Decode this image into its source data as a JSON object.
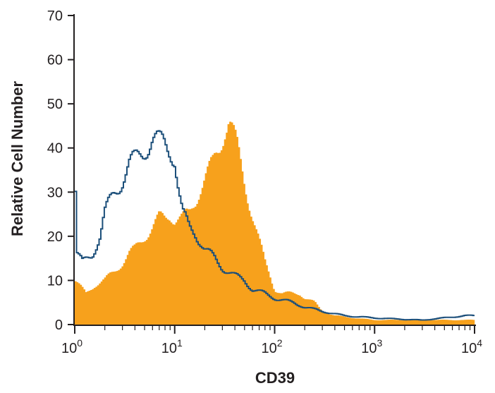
{
  "chart_data": {
    "type": "histogram",
    "xlabel": "CD39",
    "ylabel": "Relative Cell Number",
    "x_scale": "log",
    "xlim": [
      1,
      10000
    ],
    "ylim": [
      0,
      70
    ],
    "y_ticks": [
      0,
      10,
      20,
      30,
      40,
      50,
      60,
      70
    ],
    "x_ticks": [
      {
        "value": 1,
        "base": "10",
        "exp": "0"
      },
      {
        "value": 10,
        "base": "10",
        "exp": "1"
      },
      {
        "value": 100,
        "base": "10",
        "exp": "2"
      },
      {
        "value": 1000,
        "base": "10",
        "exp": "3"
      },
      {
        "value": 10000,
        "base": "10",
        "exp": "4"
      }
    ],
    "grid": false,
    "series": [
      {
        "style": "filled",
        "color": "#f7a11c",
        "points": [
          [
            1.0,
            10
          ],
          [
            1.3,
            7
          ],
          [
            1.6,
            9
          ],
          [
            2.0,
            10
          ],
          [
            2.5,
            12
          ],
          [
            3.0,
            14
          ],
          [
            3.5,
            16
          ],
          [
            4.0,
            17
          ],
          [
            5.0,
            20
          ],
          [
            6.0,
            22
          ],
          [
            7.0,
            24
          ],
          [
            8.0,
            24
          ],
          [
            9.0,
            25
          ],
          [
            10.0,
            24
          ],
          [
            12.0,
            24
          ],
          [
            14.0,
            25
          ],
          [
            16.0,
            28
          ],
          [
            18.0,
            31
          ],
          [
            20.0,
            33
          ],
          [
            24.0,
            36
          ],
          [
            28.0,
            40
          ],
          [
            32.0,
            45
          ],
          [
            35.0,
            47
          ],
          [
            38.0,
            44
          ],
          [
            42.0,
            40
          ],
          [
            50.0,
            32
          ],
          [
            60.0,
            25
          ],
          [
            70.0,
            19
          ],
          [
            80.0,
            14
          ],
          [
            90.0,
            11
          ],
          [
            100.0,
            8
          ],
          [
            120.0,
            7
          ],
          [
            150.0,
            7
          ],
          [
            180.0,
            7
          ],
          [
            200.0,
            6
          ],
          [
            250.0,
            5
          ],
          [
            300.0,
            3
          ],
          [
            400.0,
            2
          ],
          [
            600.0,
            1.5
          ],
          [
            1000.0,
            1
          ],
          [
            2000.0,
            1
          ],
          [
            5000.0,
            1
          ],
          [
            10000.0,
            1
          ]
        ]
      },
      {
        "style": "outline",
        "color": "#1c4f7a",
        "points": [
          [
            1.0,
            40
          ],
          [
            1.05,
            16
          ],
          [
            1.2,
            14
          ],
          [
            1.5,
            16
          ],
          [
            1.8,
            20
          ],
          [
            2.0,
            25
          ],
          [
            2.5,
            30
          ],
          [
            3.0,
            33
          ],
          [
            3.5,
            36
          ],
          [
            4.0,
            37
          ],
          [
            5.0,
            40
          ],
          [
            6.0,
            42
          ],
          [
            7.0,
            41
          ],
          [
            8.0,
            41
          ],
          [
            9.0,
            40
          ],
          [
            10.0,
            38
          ],
          [
            11.0,
            30
          ],
          [
            12.0,
            25
          ],
          [
            14.0,
            22
          ],
          [
            16.0,
            21
          ],
          [
            18.0,
            19
          ],
          [
            20.0,
            17
          ],
          [
            25.0,
            15
          ],
          [
            30.0,
            13
          ],
          [
            40.0,
            11
          ],
          [
            50.0,
            10
          ],
          [
            60.0,
            8
          ],
          [
            80.0,
            7
          ],
          [
            100.0,
            6
          ],
          [
            150.0,
            5
          ],
          [
            200.0,
            4
          ],
          [
            300.0,
            3
          ],
          [
            500.0,
            2
          ],
          [
            1000.0,
            1.5
          ],
          [
            3000.0,
            1
          ],
          [
            8000.0,
            2
          ],
          [
            10000.0,
            2
          ]
        ]
      }
    ]
  }
}
